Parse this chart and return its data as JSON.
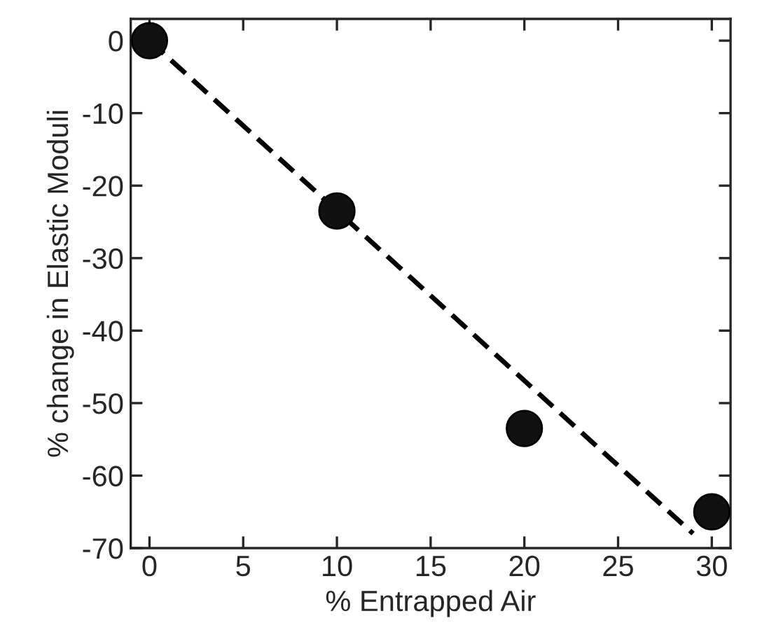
{
  "chart_data": {
    "type": "scatter",
    "xlabel": "% Entrapped Air",
    "ylabel": "% change in Elastic Moduli",
    "series": [
      {
        "color": "#111111",
        "x": [
          0,
          10,
          20,
          30
        ],
        "values": [
          0,
          -23.5,
          -53.5,
          -65
        ],
        "marker": "circle"
      },
      {
        "type": "line",
        "color": "#000000",
        "x": [
          0,
          29
        ],
        "values": [
          0,
          -68
        ],
        "line_style": "dashed",
        "marker": "none"
      }
    ],
    "xlim": [
      -1,
      31
    ],
    "xticks": [
      0,
      5,
      10,
      15,
      20,
      25,
      30
    ],
    "ylim": [
      -70,
      3
    ],
    "yticks": [
      0,
      -10,
      -20,
      -30,
      -40,
      -50,
      -60,
      -70
    ],
    "grid": false,
    "legend": false
  }
}
